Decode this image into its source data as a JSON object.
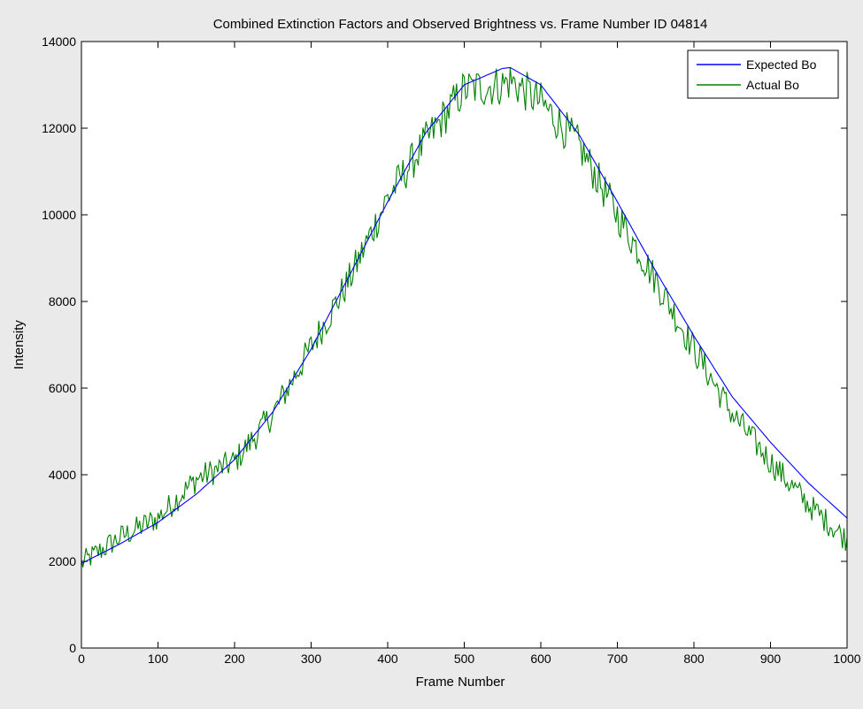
{
  "chart_data": {
    "type": "line",
    "title": "Combined Extinction Factors and Observed Brightness vs. Frame Number ID 04814",
    "xlabel": "Frame Number",
    "ylabel": "Intensity",
    "xlim": [
      0,
      1000
    ],
    "ylim": [
      0,
      14000
    ],
    "xticks": [
      0,
      100,
      200,
      300,
      400,
      500,
      600,
      700,
      800,
      900,
      1000
    ],
    "yticks": [
      0,
      2000,
      4000,
      6000,
      8000,
      10000,
      12000,
      14000
    ],
    "grid": false,
    "legend_position": "top-right",
    "series": [
      {
        "name": "Expected Bo",
        "color": "#0000ff",
        "x": [
          0,
          50,
          100,
          150,
          200,
          250,
          300,
          350,
          400,
          450,
          500,
          550,
          560,
          600,
          650,
          700,
          750,
          800,
          850,
          900,
          950,
          1000
        ],
        "y": [
          1950,
          2400,
          2900,
          3550,
          4350,
          5450,
          6900,
          8600,
          10300,
          11900,
          13000,
          13380,
          13400,
          13000,
          11850,
          10300,
          8700,
          7200,
          5800,
          4750,
          3800,
          3000
        ]
      },
      {
        "name": "Actual Bo",
        "color": "#008000",
        "noisy": true,
        "x": [
          0,
          50,
          100,
          150,
          200,
          250,
          300,
          350,
          400,
          450,
          500,
          550,
          560,
          600,
          650,
          700,
          750,
          800,
          850,
          900,
          950,
          1000
        ],
        "y": [
          1950,
          2550,
          3000,
          3900,
          4300,
          5400,
          6950,
          8500,
          10400,
          11700,
          12900,
          13000,
          13100,
          12600,
          11600,
          10000,
          8500,
          6900,
          5400,
          4300,
          3300,
          2500
        ]
      }
    ]
  }
}
